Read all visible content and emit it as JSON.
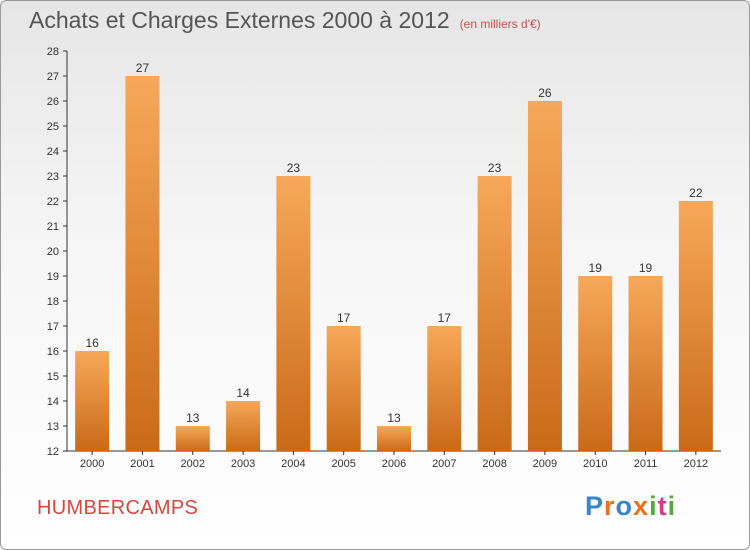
{
  "header": {
    "title": "Achats et Charges Externes 2000 à 2012",
    "subtitle": "(en milliers d'€)"
  },
  "footer": {
    "town": "HUMBERCAMPS",
    "logo_text": "Proxiti",
    "logo_colors": [
      "#3a86c8",
      "#e8711a",
      "#3a86c8",
      "#e8711a",
      "#58a83a",
      "#d63a8a",
      "#58a83a"
    ]
  },
  "colors": {
    "bar_light": "#f7a85a",
    "bar_dark": "#c96a18",
    "title": "#555555",
    "town": "#d2483f"
  },
  "chart_data": {
    "type": "bar",
    "title": "Achats et Charges Externes 2000 à 2012",
    "subtitle": "(en milliers d'€)",
    "categories": [
      "2000",
      "2001",
      "2002",
      "2003",
      "2004",
      "2005",
      "2006",
      "2007",
      "2008",
      "2009",
      "2010",
      "2011",
      "2012"
    ],
    "values": [
      16,
      27,
      13,
      14,
      23,
      17,
      13,
      17,
      23,
      26,
      19,
      19,
      22
    ],
    "value_labels": [
      "16",
      "27",
      "13",
      "14",
      "23",
      "17",
      "13",
      "17",
      "23",
      "26",
      "19",
      "19",
      "22"
    ],
    "ylim": [
      12,
      28
    ],
    "yticks": [
      "12",
      "13",
      "14",
      "15",
      "16",
      "17",
      "18",
      "19",
      "20",
      "21",
      "22",
      "23",
      "24",
      "25",
      "26",
      "27",
      "28"
    ],
    "grid": false,
    "legend": "none"
  }
}
